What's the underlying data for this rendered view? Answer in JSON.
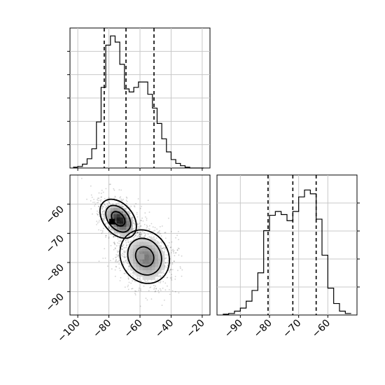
{
  "chart_data": [
    {
      "panel": "top-left",
      "type": "histogram",
      "variable": "x",
      "xlim": [
        -105,
        -15
      ],
      "bins": [
        -103,
        -100,
        -97,
        -94,
        -91,
        -88,
        -85,
        -82,
        -79,
        -76,
        -73,
        -70,
        -67,
        -64,
        -61,
        -58,
        -55,
        -52,
        -49,
        -46,
        -43,
        -40,
        -37,
        -34,
        -31,
        -28,
        -25,
        -22,
        -19
      ],
      "counts": [
        1,
        2,
        5,
        12,
        25,
        60,
        105,
        160,
        172,
        164,
        135,
        103,
        99,
        105,
        112,
        112,
        96,
        78,
        58,
        38,
        21,
        11,
        6,
        3,
        1,
        0,
        0,
        0
      ],
      "quantile_lines": [
        -83,
        -69,
        -51
      ],
      "grid": true
    },
    {
      "panel": "bottom-left",
      "type": "2d-density",
      "x": "x",
      "y": "y",
      "xlim": [
        -105,
        -15
      ],
      "ylim": [
        -98,
        -50
      ],
      "xticks": [
        "−100",
        "−80",
        "−60",
        "−40",
        "−20"
      ],
      "yticks": [
        "−60",
        "−70",
        "−80",
        "−90"
      ],
      "clusters": [
        {
          "center": [
            -74,
            -65
          ],
          "spread": [
            5,
            4
          ],
          "rotation_deg": -40,
          "peak": [
            -78,
            -66
          ]
        },
        {
          "center": [
            -57,
            -78
          ],
          "spread": [
            8,
            5
          ],
          "rotation_deg": -30,
          "peak": [
            -59,
            -78
          ]
        }
      ],
      "contour_levels": 3,
      "grid": true
    },
    {
      "panel": "bottom-right",
      "type": "histogram",
      "variable": "y",
      "xlim": [
        -98,
        -50
      ],
      "bins": [
        -96,
        -94,
        -92,
        -90,
        -88,
        -86,
        -84,
        -82,
        -80,
        -78,
        -76,
        -74,
        -72,
        -70,
        -68,
        -66,
        -64,
        -62,
        -60,
        -58,
        -56,
        -54,
        -52
      ],
      "counts": [
        1,
        2,
        5,
        9,
        18,
        32,
        55,
        110,
        130,
        135,
        131,
        123,
        135,
        154,
        163,
        158,
        125,
        78,
        35,
        15,
        5,
        2
      ],
      "quantile_lines": [
        -80.5,
        -72,
        -64
      ],
      "xticks": [
        "−90",
        "−80",
        "−70",
        "−60"
      ],
      "grid": true
    }
  ]
}
